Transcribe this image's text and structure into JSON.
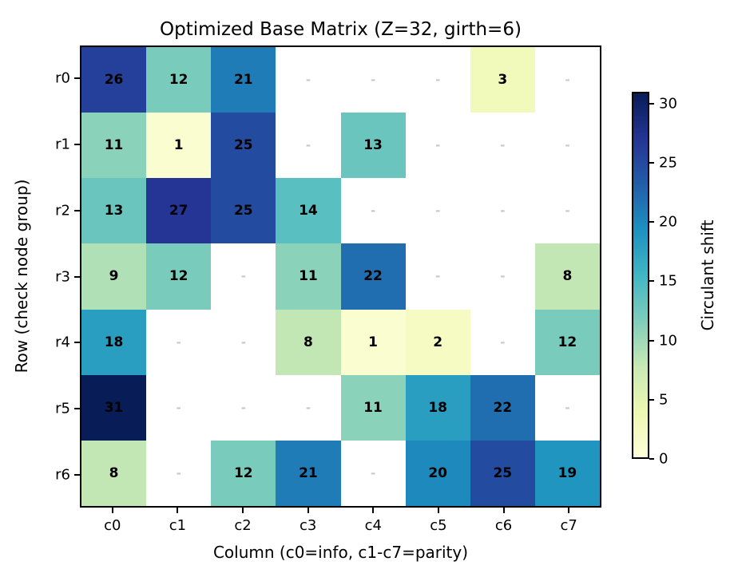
{
  "chart_data": {
    "type": "heatmap",
    "title": "Optimized Base Matrix (Z=32, girth=6)",
    "xlabel": "Column (c0=info, c1-c7=parity)",
    "ylabel": "Row (check node group)",
    "rows": [
      "r0",
      "r1",
      "r2",
      "r3",
      "r4",
      "r5",
      "r6"
    ],
    "columns": [
      "c0",
      "c1",
      "c2",
      "c3",
      "c4",
      "c5",
      "c6",
      "c7"
    ],
    "matrix": [
      [
        26,
        12,
        21,
        null,
        null,
        null,
        3,
        null
      ],
      [
        11,
        1,
        25,
        null,
        13,
        null,
        null,
        null
      ],
      [
        13,
        27,
        25,
        14,
        null,
        null,
        null,
        null
      ],
      [
        9,
        12,
        null,
        11,
        22,
        null,
        null,
        8
      ],
      [
        18,
        null,
        null,
        8,
        1,
        2,
        null,
        12
      ],
      [
        31,
        null,
        null,
        null,
        11,
        18,
        22,
        null
      ],
      [
        8,
        null,
        12,
        21,
        null,
        20,
        25,
        19
      ]
    ],
    "empty_marker": "-",
    "legend_position": "right",
    "grid": false,
    "colorbar": {
      "label": "Circulant shift",
      "ticks": [
        0,
        5,
        10,
        15,
        20,
        25,
        30
      ],
      "vmin": 0,
      "vmax": 31,
      "colormap": "YlGnBu",
      "stops": [
        "#ffffd9",
        "#edf8b1",
        "#c7e9b4",
        "#7fcdbb",
        "#41b6c4",
        "#1d91c0",
        "#225ea8",
        "#253494",
        "#081d58"
      ]
    },
    "colors": {
      "cell_text": "#000000",
      "empty_dash": "#c8c8c8",
      "spine": "#000000",
      "background": "#ffffff"
    }
  }
}
